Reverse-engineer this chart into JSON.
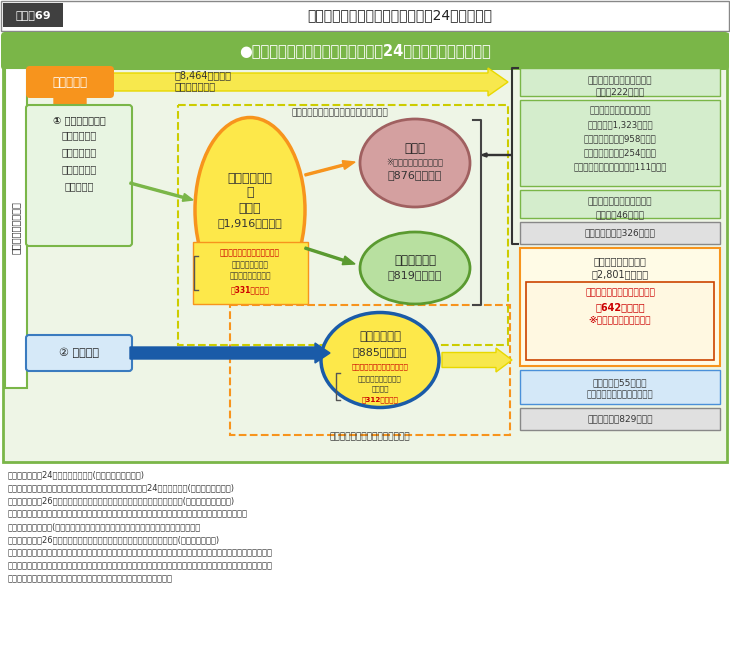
{
  "title_tag": "図表－69",
  "title_text": "食品廃棄物等の利用状況等（平成24年度推計）",
  "subtitle": "●食品廃棄物等の利用状況等（平成24年度推計）〈概念図〉",
  "orange_box_label": "食用仕向量",
  "orange_box_sub1": "（8,464万トン）",
  "orange_box_sub2": "粗食料＋加工用",
  "vertical_label": "食品資源の利用主体",
  "box1_title": "① 食品関連事業者",
  "box1_items": [
    "・食品製造業",
    "・食品卸売業",
    "・食品小売業",
    "・外食産業"
  ],
  "box2_title": "② 一般家庭",
  "center_ellipse_line1": "事業系廃棄物",
  "center_ellipse_line2": "＋",
  "center_ellipse_line3": "有価物",
  "center_ellipse_line4": "（1,916万トン）",
  "center_sub_title": "うち可食部分と考えられる量",
  "center_sub_body": "規格外品、返品、\n売れ残り、食べ残し",
  "center_sub_value": "（331万トン）",
  "right_ellipse1_line1": "有価物",
  "right_ellipse1_line2": "※大豆ミール、ふすま等",
  "right_ellipse1_line3": "（876万トン）",
  "right_ellipse2_line1": "事業系廃棄物",
  "right_ellipse2_line2": "（819万トン）",
  "bottom_ellipse_line1": "家庭系廃棄物",
  "bottom_ellipse_line2": "（885万トン）",
  "bottom_sub_title": "うち可食部分と考えられる量",
  "bottom_sub_body": "食べ残し、過剰除去、\n直接廃棄",
  "bottom_sub_value": "（312万トン）",
  "dashed_label1": "食品リサイクル法における食品廃棄物等",
  "dashed_label2": "廃棄物処理法における食品廃棄物",
  "rb1_text": "食品リサイクル法における\n減量：222万トン",
  "rb2_line1": "食品リサイクル法における",
  "rb2_line2": "再生利用：1,323万トン",
  "rb2_line3": "うち飼料化向け：958万トン",
  "rb2_line4": "うち肥料化向け：254万トン",
  "rb2_line5": "うちエネルギー化等向け：111万トン",
  "rb3_text": "食品リサイクル法における\n熱回収：46万トン",
  "rb4_text": "焼却・埋立等：326万トン",
  "ryellow_title1": "食品由来の廃棄物等",
  "ryellow_title2": "（2,801万トン）",
  "ryellow_sub1": "うち可食部分と考えられる量",
  "ryellow_sub2": "（642万トン）",
  "ryellow_sub3": "※いわゆる「食品ロス」",
  "rb5_line1": "再生利用：55万トン",
  "rb5_line2": "（肥料化・メタン化等向け）",
  "rb6_text": "焼却・埋立：829万トン",
  "note_text": "資料：・「平成24年度食料需給表」(農林水産省大臣官房)\n　　　・「食品廃棄物等の発生量及び再生利用等の内訳（平成24年度実績）」(農林水産省統計部)\n　　　・「平成26年度食品産業リサイクル状況等調査委託事業実績報告書」(農林水産省委託事業)\n　　　・事業系廃棄物及び家庭系廃棄物の量は、「一般廃棄物の排出及び処理状況、産業廃棄物の排出及び\n　　　　処理状況」(環境省）等を基に環境省廃棄物・リサイクル対策部において推計\n　　　・「平成26年度食品循環資源に関する実施状況調査等業務報告書」(環境省請負調査)\n注：　・事業系廃棄物の「食品リサイクル法における再生利用」のうち「エネルギー化等」とは、食品リサイクル法で\n　　　　定めるメタン、エタノール、炭化の過程を経て製造される燃料及び還元剤、油脂及び油脂製品の製造である。\n　　　・ラウンドの関係により合計と内訳の計が一致しないことがある。"
}
